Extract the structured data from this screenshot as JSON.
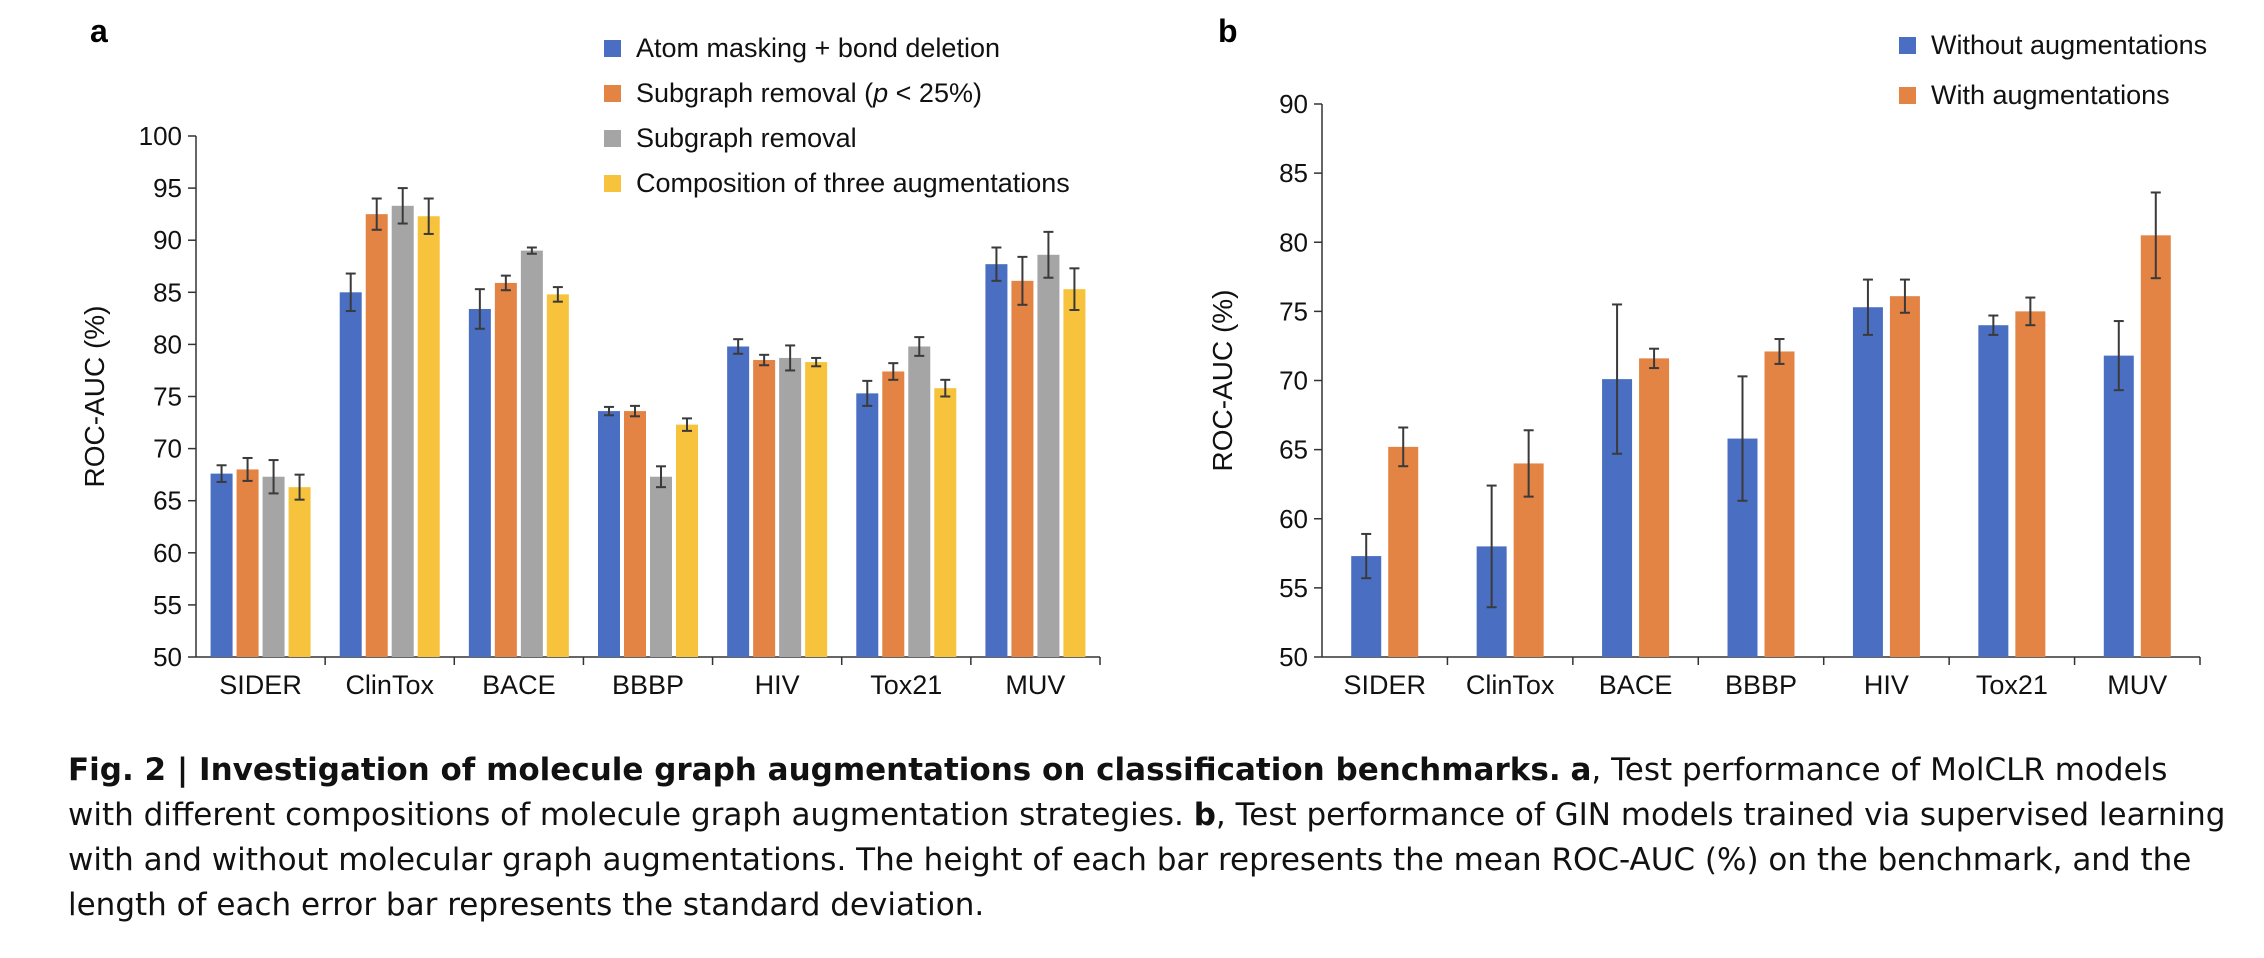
{
  "chart_data": [
    {
      "panel": "a",
      "type": "bar",
      "ylabel": "ROC-AUC (%)",
      "ylim": [
        50,
        100
      ],
      "yticks": [
        50,
        55,
        60,
        65,
        70,
        75,
        80,
        85,
        90,
        95,
        100
      ],
      "categories": [
        "SIDER",
        "ClinTox",
        "BACE",
        "BBBP",
        "HIV",
        "Tox21",
        "MUV"
      ],
      "legend_position": "top-right",
      "error_bars": true,
      "series": [
        {
          "name": "Atom masking + bond deletion",
          "color": "#4a6fc2",
          "values": [
            67.6,
            85.0,
            83.4,
            73.6,
            79.8,
            75.3,
            87.7
          ],
          "errors": [
            0.8,
            1.8,
            1.9,
            0.4,
            0.7,
            1.2,
            1.6
          ]
        },
        {
          "name": "Subgraph removal (p < 25%)",
          "color": "#e38344",
          "values": [
            68.0,
            92.5,
            85.9,
            73.6,
            78.5,
            77.4,
            86.1
          ],
          "errors": [
            1.1,
            1.5,
            0.7,
            0.5,
            0.5,
            0.8,
            2.3
          ]
        },
        {
          "name": "Subgraph removal",
          "color": "#a5a5a5",
          "values": [
            67.3,
            93.3,
            89.0,
            67.3,
            78.7,
            79.8,
            88.6
          ],
          "errors": [
            1.6,
            1.7,
            0.3,
            1.0,
            1.2,
            0.9,
            2.2
          ]
        },
        {
          "name": "Composition of three augmentations",
          "color": "#f7c33c",
          "values": [
            66.3,
            92.3,
            84.8,
            72.3,
            78.3,
            75.8,
            85.3
          ],
          "errors": [
            1.2,
            1.7,
            0.7,
            0.6,
            0.4,
            0.8,
            2.0
          ]
        }
      ]
    },
    {
      "panel": "b",
      "type": "bar",
      "ylabel": "ROC-AUC (%)",
      "ylim": [
        50,
        90
      ],
      "yticks": [
        50,
        55,
        60,
        65,
        70,
        75,
        80,
        85,
        90
      ],
      "categories": [
        "SIDER",
        "ClinTox",
        "BACE",
        "BBBP",
        "HIV",
        "Tox21",
        "MUV"
      ],
      "legend_position": "top-right",
      "error_bars": true,
      "series": [
        {
          "name": "Without augmentations",
          "color": "#4a6fc2",
          "values": [
            57.3,
            58.0,
            70.1,
            65.8,
            75.3,
            74.0,
            71.8
          ],
          "errors": [
            1.6,
            4.4,
            5.4,
            4.5,
            2.0,
            0.7,
            2.5
          ]
        },
        {
          "name": "With augmentations",
          "color": "#e38344",
          "values": [
            65.2,
            64.0,
            71.6,
            72.1,
            76.1,
            75.0,
            80.5
          ],
          "errors": [
            1.4,
            2.4,
            0.7,
            0.9,
            1.2,
            1.0,
            3.1
          ]
        }
      ]
    }
  ],
  "caption": {
    "fig_label": "Fig. 2 | ",
    "title": "Investigation of molecule graph augmentations on classification benchmarks.",
    "a_label": "a",
    "a_text": ", Test performance of MolCLR models with different compositions of molecule graph augmentation strategies.",
    "b_label": "b",
    "b_text": ", Test performance of GIN models trained via supervised learning with and without molecular graph augmentations. The height of each bar represents the mean ROC-AUC (%) on the benchmark, and the length of each error bar represents the standard deviation."
  }
}
